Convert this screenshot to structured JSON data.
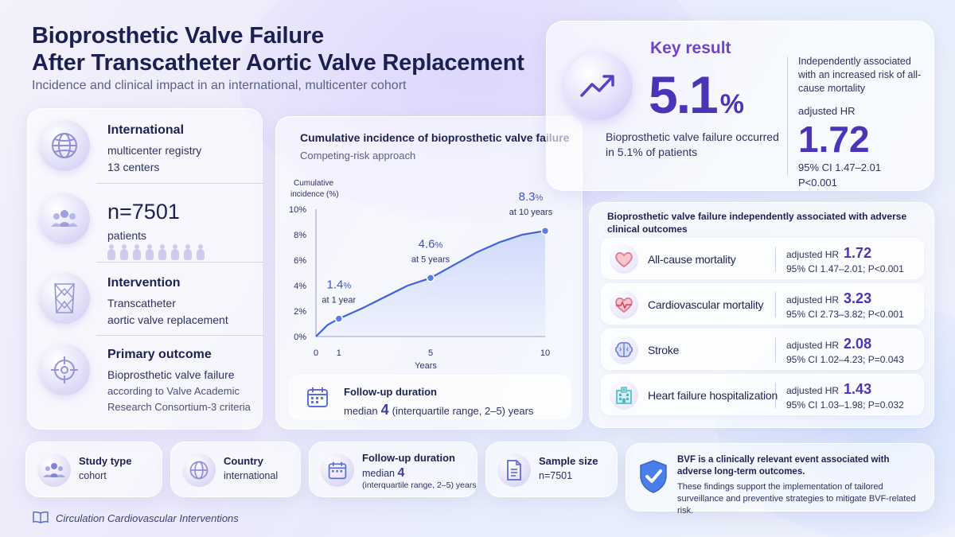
{
  "header": {
    "title_line1": "Bioprosthetic Valve Failure",
    "title_line2": "After Transcatheter Aortic Valve Replacement",
    "subtitle": "Incidence and clinical impact in an international, multicenter cohort"
  },
  "left_panel": {
    "international": {
      "heading": "International",
      "line1": "multicenter registry",
      "line2": "13 centers",
      "icon": "globe-icon"
    },
    "patients": {
      "heading": "n=7501",
      "line1": "patients",
      "icon": "people-icon"
    },
    "intervention": {
      "heading": "Intervention",
      "line1": "Transcatheter",
      "line2": "aortic valve replacement",
      "icon": "valve-icon"
    },
    "primary_outcome": {
      "heading": "Primary outcome",
      "line1": "Bioprosthetic valve failure",
      "line2": "according to Valve Academic",
      "line3": "Research Consortium-3 criteria",
      "icon": "target-icon"
    }
  },
  "chart_panel": {
    "heading": "Cumulative incidence of bioprosthetic valve failure",
    "subheading": "Competing-risk approach",
    "followup": {
      "heading": "Follow-up duration",
      "prefix": "median",
      "value": "4",
      "suffix": "(interquartile range, 2–5) years",
      "icon": "calendar-icon"
    }
  },
  "chart_data": {
    "type": "line",
    "ylabel_line1": "Cumulative",
    "ylabel_line2": "incidence (%)",
    "xlabel": "Years",
    "x_ticks": [
      0,
      1,
      5,
      10
    ],
    "y_ticks": [
      "0%",
      "2%",
      "4%",
      "6%",
      "8%",
      "10%"
    ],
    "xlim": [
      0,
      10
    ],
    "ylim": [
      0,
      10
    ],
    "series": [
      {
        "x": [
          0,
          0.5,
          1,
          2,
          3,
          4,
          5,
          6,
          7,
          8,
          9,
          10
        ],
        "y": [
          0,
          0.9,
          1.4,
          2.2,
          3.1,
          4.0,
          4.6,
          5.6,
          6.6,
          7.4,
          8.0,
          8.3
        ]
      }
    ],
    "annotations": [
      {
        "x": 1,
        "y": 1.4,
        "value": "1.4",
        "unit": "%",
        "label": "at 1 year"
      },
      {
        "x": 5,
        "y": 4.6,
        "value": "4.6",
        "unit": "%",
        "label": "at 5 years"
      },
      {
        "x": 10,
        "y": 8.3,
        "value": "8.3",
        "unit": "%",
        "label": "at 10 years"
      }
    ],
    "colors": {
      "line": "#3e63d8",
      "fill": "#c9d6fb"
    }
  },
  "key_result": {
    "label": "Key result",
    "value": "5.1",
    "unit": "%",
    "description": "Bioprosthetic valve failure occurred in 5.1% of patients",
    "assoc": "Independently associated with an increased risk of all-cause mortality",
    "hr_label": "adjusted HR",
    "hr_value": "1.72",
    "ci": "95% CI 1.47–2.01",
    "p": "P<0.001",
    "icon": "trend-up-icon"
  },
  "outcomes": {
    "heading": "Bioprosthetic valve failure independently associated with adverse clinical outcomes",
    "items": [
      {
        "label": "All-cause mortality",
        "hr_label": "adjusted HR",
        "hr": "1.72",
        "ci": "95% CI 1.47–2.01; P<0.001",
        "icon": "heart-icon"
      },
      {
        "label": "Cardiovascular mortality",
        "hr_label": "adjusted HR",
        "hr": "3.23",
        "ci": "95% CI 2.73–3.82; P<0.001",
        "icon": "heart-pulse-icon"
      },
      {
        "label": "Stroke",
        "hr_label": "adjusted HR",
        "hr": "2.08",
        "ci": "95% CI 1.02–4.23; P=0.043",
        "icon": "brain-icon"
      },
      {
        "label": "Heart failure hospitalization",
        "hr_label": "adjusted HR",
        "hr": "1.43",
        "ci": "95% CI 1.03–1.98; P=0.032",
        "icon": "hospital-icon"
      }
    ]
  },
  "bottom": {
    "study_type": {
      "heading": "Study type",
      "value": "cohort",
      "icon": "group-icon"
    },
    "country": {
      "heading": "Country",
      "value": "international",
      "icon": "globe-icon"
    },
    "followup": {
      "heading": "Follow-up duration",
      "prefix": "median",
      "value": "4",
      "suffix": "(interquartile range, 2–5) years",
      "icon": "calendar-icon"
    },
    "sample_size": {
      "heading": "Sample size",
      "value": "n=7501",
      "icon": "document-icon"
    },
    "conclusion": {
      "line1": "BVF is a clinically relevant event associated with adverse long-term outcomes.",
      "line2": "These findings support the implementation of tailored surveillance and preventive strategies to mitigate BVF-related risk.",
      "icon": "shield-check-icon"
    },
    "journal": "Circulation Cardiovascular Interventions"
  }
}
